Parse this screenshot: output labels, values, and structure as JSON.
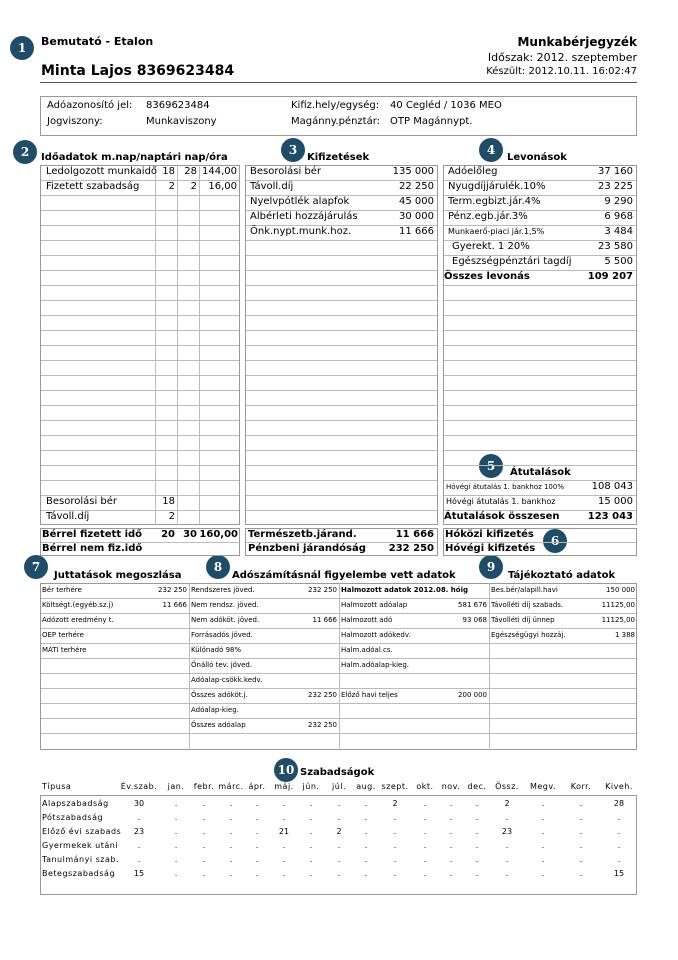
{
  "header": {
    "company": "Bemutató - Etalon",
    "employee": "Minta Lajos  8369623484",
    "title": "Munkabérjegyzék",
    "period": "Időszak: 2012. szeptember",
    "created": "Készült: 2012.10.11. 16:02:47"
  },
  "info": {
    "items": [
      {
        "label": "Adóazonosító jel:",
        "value": "8369623484"
      },
      {
        "label": "Jogviszony:",
        "value": "Munkaviszony"
      },
      {
        "label": "Kifiz.hely/egység:",
        "value": "40 Cegléd / 1036 MEO"
      },
      {
        "label": "Magánny.pénztár:",
        "value": "OTP Magánnypt."
      }
    ]
  },
  "badges": [
    "1",
    "2",
    "3",
    "4",
    "5",
    "6",
    "7",
    "8",
    "9",
    "10"
  ],
  "time_data": {
    "title": "Időadatok m.nap/naptári nap/óra",
    "rows": [
      [
        "Ledolgozott munkaidő",
        "18",
        "28",
        "144,00"
      ],
      [
        "Fizetett szabadság",
        "2",
        "2",
        "16,00"
      ]
    ],
    "bottom_rows": [
      [
        "Besorolási bér",
        "18"
      ],
      [
        "Távoll.díj",
        "2"
      ]
    ]
  },
  "payments": {
    "title": "Kifizetések",
    "rows": [
      [
        "Besorolási bér",
        "135 000"
      ],
      [
        "Távoll.díj",
        "22 250"
      ],
      [
        "Nyelvpótlék alapfok",
        "45 000"
      ],
      [
        "Albérleti hozzájárulás",
        "30 000"
      ],
      [
        "Önk.nypt.munk.hoz.",
        "11 666"
      ]
    ]
  },
  "deductions": {
    "title": "Levonások",
    "rows": [
      [
        "Adóelőleg",
        "37 160"
      ],
      [
        "Nyugdíjjárulék.10%",
        "23 225"
      ],
      [
        "Term.egbizt.jár.4%",
        "9 290"
      ],
      [
        "Pénz.egb.jár.3%",
        "6 968"
      ],
      [
        "Munkaerő-piaci jár.1,5%",
        "3 484"
      ],
      [
        "Gyerekt. 1 20%",
        "23 580"
      ],
      [
        "Egészségpénztári tagdíj",
        "5 500"
      ]
    ],
    "total": [
      "Összes levonás",
      "109 207"
    ]
  },
  "transfers": {
    "title": "Átutalások",
    "rows": [
      [
        "Hóvégi átutalás 1. bankhoz 100%",
        "108 043"
      ],
      [
        "Hóvégi átutalás 1. bankhoz",
        "15 000"
      ]
    ],
    "total": [
      "Átutalások összesen",
      "123 043"
    ]
  },
  "summary": {
    "paid_time": [
      "Bérrel fizetett idő",
      "20",
      "30",
      "160,00"
    ],
    "unpaid_time": [
      "Bérrel nem fiz.idő"
    ],
    "in_kind": [
      "Természetb.járand.",
      "11 666"
    ],
    "cash": [
      "Pénzbeni járandóság",
      "232 250"
    ],
    "midmonth": "Hóközi kifizetés",
    "endmonth": "Hóvégi kifizetés"
  },
  "benefits": {
    "title": "Juttatások megoszlása",
    "rows": [
      [
        "Bér terhére",
        "232 250"
      ],
      [
        "Költségt.(egyéb.sz.j)",
        "11 666"
      ],
      [
        "Adózott eredmény t."
      ],
      [
        "OEP terhére"
      ],
      [
        "MÁTI terhére"
      ]
    ]
  },
  "tax": {
    "title": "Adószámításnál figyelembe vett adatok",
    "rows": [
      [
        "Rendszeres jöved.",
        "232 250"
      ],
      [
        "Nem rendsz. jöved."
      ],
      [
        "Nem adóköt. jöved.",
        "11 666"
      ],
      [
        "Forrásadós jöved."
      ],
      [
        "Különadó 98%"
      ],
      [
        "Önálló tev. jöved."
      ],
      [
        "Adóalap-csökk.kedv."
      ],
      [
        "Összes adóköt.j.",
        "232 250"
      ],
      [
        "Adóalap-kieg."
      ],
      [
        "Összes adóalap",
        "232 250"
      ]
    ]
  },
  "cumulative": {
    "title": "Halmozott adatok 2012.08. hóig",
    "rows": [
      [
        "Halmozott adóalap",
        "581 676"
      ],
      [
        "Halmozott adó",
        "93 068"
      ],
      [
        "Halmozott adókedv."
      ],
      [
        "Halm.adóal.cs."
      ],
      [
        "Halm.adóalap-kieg."
      ]
    ],
    "previous": [
      "Előző havi teljes",
      "200 000"
    ]
  },
  "info_data": {
    "title": "Tájékoztató adatok",
    "rows": [
      [
        "Bes.bér/alapill.havi",
        "150 000"
      ],
      [
        "Távolléti díj szabads.",
        "11125,00"
      ],
      [
        "Távolléti díj ünnep",
        "11125,00"
      ],
      [
        "Egészségügyi hozzáj.",
        "1 388"
      ]
    ]
  },
  "leave": {
    "title": "Szabadságok",
    "columns": [
      "Típusa",
      "Év.szab.",
      "jan.",
      "febr.",
      "márc.",
      "ápr.",
      "máj.",
      "jún.",
      "júl.",
      "aug.",
      "szept.",
      "okt.",
      "nov.",
      "dec.",
      "Össz.",
      "Megv.",
      "Korr.",
      "Kiveh."
    ],
    "rows": [
      [
        "Alapszabadság",
        "30",
        ".",
        ".",
        ".",
        ".",
        ".",
        ".",
        ".",
        ".",
        "2",
        ".",
        ".",
        ".",
        "2",
        ".",
        ".",
        "28"
      ],
      [
        "Pótszabadság",
        ".",
        ".",
        ".",
        ".",
        ".",
        ".",
        ".",
        ".",
        ".",
        ".",
        ".",
        ".",
        ".",
        ".",
        ".",
        ".",
        "."
      ],
      [
        "Előző évi szabads",
        "23",
        ".",
        ".",
        ".",
        ".",
        "21",
        ".",
        "2",
        ".",
        ".",
        ".",
        ".",
        ".",
        "23",
        ".",
        ".",
        "."
      ],
      [
        "Gyermekek utáni",
        ".",
        ".",
        ".",
        ".",
        ".",
        ".",
        ".",
        ".",
        ".",
        ".",
        ".",
        ".",
        ".",
        ".",
        ".",
        ".",
        "."
      ],
      [
        "Tanulmányi szab.",
        ".",
        ".",
        ".",
        ".",
        ".",
        ".",
        ".",
        ".",
        ".",
        ".",
        ".",
        ".",
        ".",
        ".",
        ".",
        ".",
        "."
      ],
      [
        "Betegszabadság",
        "15",
        ".",
        ".",
        ".",
        ".",
        ".",
        ".",
        ".",
        ".",
        ".",
        ".",
        ".",
        ".",
        ".",
        ".",
        ".",
        "15"
      ]
    ]
  }
}
